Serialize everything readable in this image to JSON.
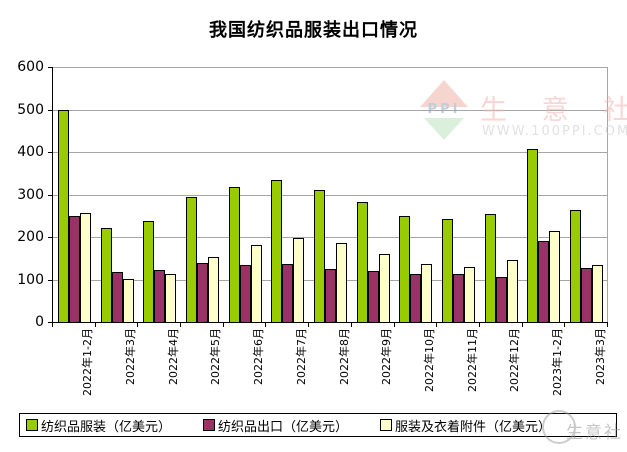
{
  "chart_data": {
    "type": "bar",
    "title": "我国纺织品服装出口情况",
    "categories": [
      "2022年1-2月",
      "2022年3月",
      "2022年4月",
      "2022年5月",
      "2022年6月",
      "2022年7月",
      "2022年8月",
      "2022年9月",
      "2022年10月",
      "2022年11月",
      "2022年12月",
      "2023年1-2月",
      "2023年3月"
    ],
    "series": [
      {
        "name": "纺织品服装（亿美元）",
        "color": "#99CC00",
        "values": [
          500,
          221,
          238,
          293,
          317,
          333,
          311,
          282,
          250,
          243,
          254,
          408,
          263
        ]
      },
      {
        "name": "纺织品出口（亿美元）",
        "color": "#993366",
        "values": [
          250,
          118,
          123,
          139,
          134,
          136,
          125,
          121,
          113,
          113,
          107,
          191,
          128
        ]
      },
      {
        "name": "服装及衣着附件（亿美元）",
        "color": "#FFFFCC",
        "values": [
          256,
          102,
          114,
          154,
          181,
          197,
          186,
          160,
          137,
          130,
          146,
          215,
          133
        ]
      }
    ],
    "xlabel": "",
    "ylabel": "",
    "ylim": [
      0,
      600
    ],
    "y_ticks": [
      "0",
      "100",
      "200",
      "300",
      "400",
      "500",
      "600"
    ],
    "grid": true,
    "legend_position": "bottom",
    "gridline_color": "#A6A6A6",
    "axis_color": "#000000"
  },
  "watermark": {
    "logo_text": "PPI",
    "site_name": "生 意 社",
    "site_url": "WWW.100PPI.COM",
    "stamp_text": "生意社"
  }
}
